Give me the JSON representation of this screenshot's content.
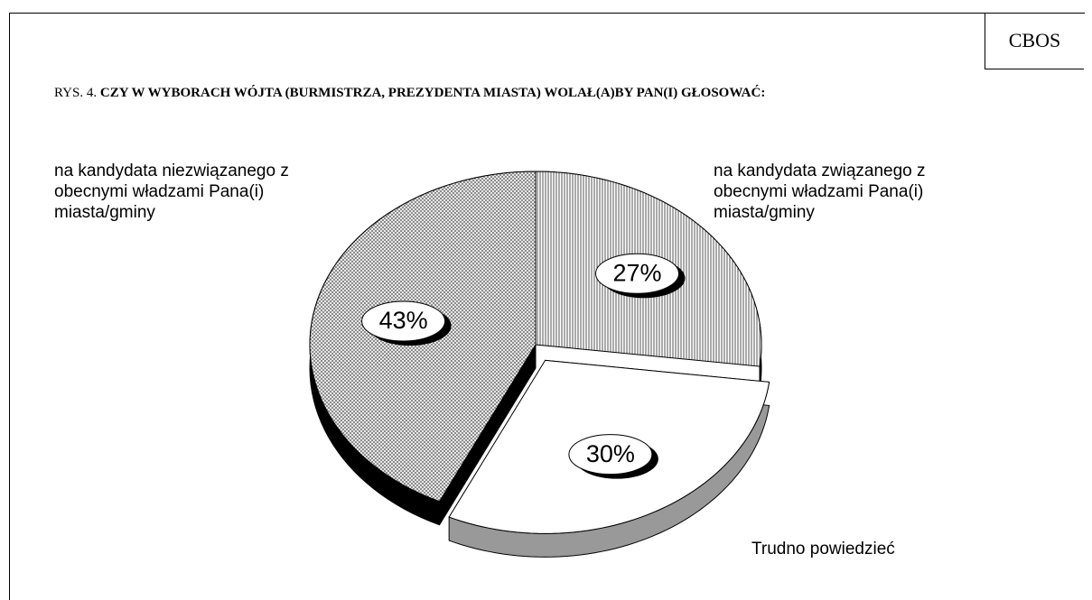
{
  "source": "CBOS",
  "chart_data": {
    "type": "pie",
    "figure_label": "RYS. 4.",
    "title": "CZY W WYBORACH WÓJTA (BURMISTRZA, PREZYDENTA MIASTA) WOLAŁ(A)BY PAN(I) GŁOSOWAĆ:",
    "categories": [
      "na kandydata związanego z obecnymi władzami Pana(i) miasta/gminy",
      "Trudno powiedzieć",
      "na kandydata niezwiązanego z obecnymi władzami Pana(i) miasta/gminy"
    ],
    "values": [
      27,
      30,
      43
    ],
    "value_labels": [
      "27%",
      "30%",
      "43%"
    ],
    "colors": [
      "#000000",
      "#999999",
      "#000000"
    ],
    "exploded": [
      false,
      true,
      false
    ]
  }
}
